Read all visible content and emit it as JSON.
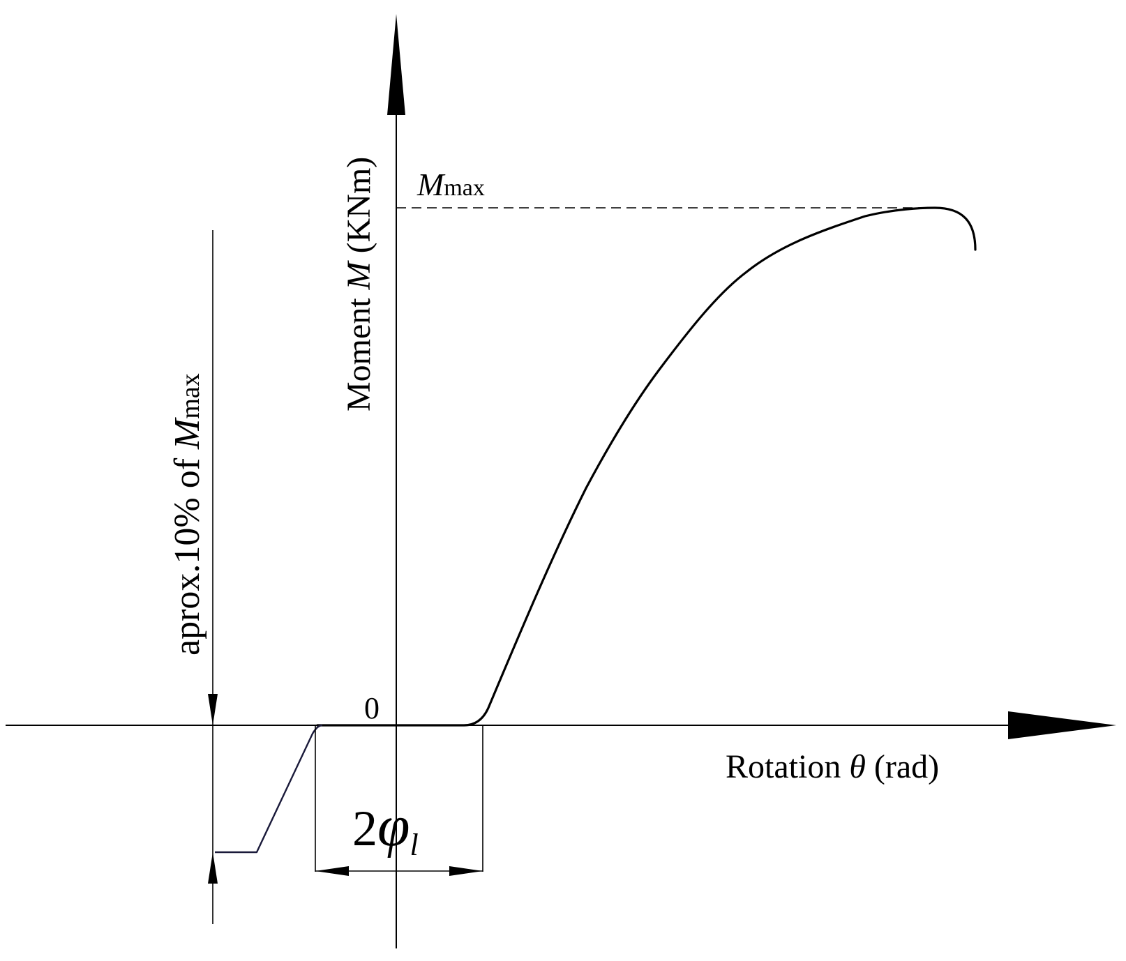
{
  "diagram": {
    "y_axis_label_prefix": "Moment ",
    "y_axis_label_var": "M",
    "y_axis_label_suffix": " (KNm)",
    "x_axis_label_prefix": "Rotation ",
    "x_axis_label_var": "θ",
    "x_axis_label_suffix": " (rad)",
    "origin_label": "0",
    "mmax_label_var": "M",
    "mmax_label_sub": "max",
    "clearance_label_num": "2",
    "clearance_label_var": "φ",
    "clearance_label_sub": "l",
    "side_label_prefix": "aprox.10% of ",
    "side_label_var": "M",
    "side_label_sub": "max"
  }
}
